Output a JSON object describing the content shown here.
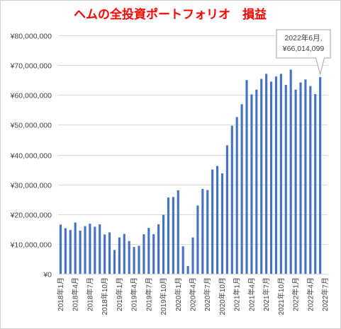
{
  "chart_data": {
    "type": "bar",
    "title": "ヘムの全投資ポートフォリオ　損益",
    "xlabel": "",
    "ylabel": "",
    "ylim": [
      0,
      80000000
    ],
    "yticks": [
      "¥0",
      "¥10,000,000",
      "¥20,000,000",
      "¥30,000,000",
      "¥40,000,000",
      "¥50,000,000",
      "¥60,000,000",
      "¥70,000,000",
      "¥80,000,000"
    ],
    "grid": true,
    "bar_color": "#4472c4",
    "title_color": "#ff0000",
    "categories": [
      "2018年1月",
      "2018年2月",
      "2018年3月",
      "2018年4月",
      "2018年5月",
      "2018年6月",
      "2018年7月",
      "2018年8月",
      "2018年9月",
      "2018年10月",
      "2018年11月",
      "2018年12月",
      "2019年1月",
      "2019年2月",
      "2019年3月",
      "2019年4月",
      "2019年5月",
      "2019年6月",
      "2019年7月",
      "2019年8月",
      "2019年9月",
      "2019年10月",
      "2019年11月",
      "2019年12月",
      "2020年1月",
      "2020年2月",
      "2020年3月",
      "2020年4月",
      "2020年5月",
      "2020年6月",
      "2020年7月",
      "2020年8月",
      "2020年9月",
      "2020年10月",
      "2020年11月",
      "2020年12月",
      "2021年1月",
      "2021年2月",
      "2021年3月",
      "2021年4月",
      "2021年5月",
      "2021年6月",
      "2021年7月",
      "2021年8月",
      "2021年9月",
      "2021年10月",
      "2021年11月",
      "2021年12月",
      "2022年1月",
      "2022年2月",
      "2022年3月",
      "2022年4月",
      "2022年5月",
      "2022年6月",
      "2022年7月"
    ],
    "tick_labels": [
      "2018年1月",
      "2018年4月",
      "2018年7月",
      "2018年10月",
      "2019年1月",
      "2019年4月",
      "2019年7月",
      "2019年10月",
      "2020年1月",
      "2020年4月",
      "2020年7月",
      "2020年10月",
      "2021年1月",
      "2021年4月",
      "2021年7月",
      "2021年10月",
      "2022年1月",
      "2022年4月",
      "2022年7月"
    ],
    "values": [
      16500000,
      15300000,
      14700000,
      17200000,
      14500000,
      16000000,
      16800000,
      15800000,
      16600000,
      13200000,
      13900000,
      8000000,
      12200000,
      13400000,
      11000000,
      9000000,
      9400000,
      13300000,
      15400000,
      13300000,
      16600000,
      19800000,
      25600000,
      25800000,
      28000000,
      9200000,
      2600000,
      12200000,
      22900000,
      28500000,
      28100000,
      35000000,
      36200000,
      33700000,
      43100000,
      49700000,
      52600000,
      56900000,
      65000000,
      60200000,
      61800000,
      65400000,
      67100000,
      64500000,
      66200000,
      67100000,
      63400000,
      68500000,
      61800000,
      64200000,
      65200000,
      63000000,
      60300000,
      66014099,
      null
    ],
    "annotation": {
      "category": "2022年6月",
      "lines": [
        "2022年6月,",
        "¥66,014,099"
      ]
    }
  }
}
